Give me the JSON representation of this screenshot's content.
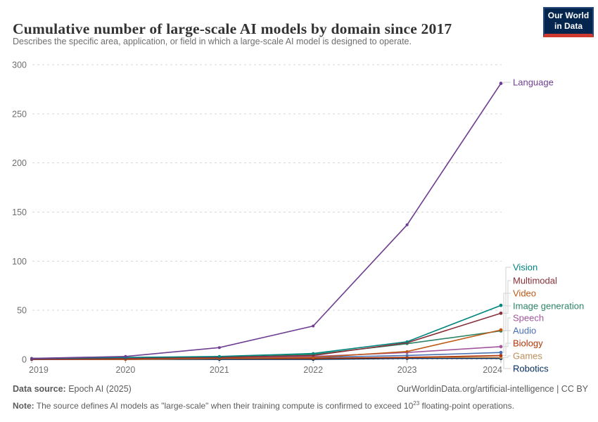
{
  "header": {
    "title": "Cumulative number of large-scale AI models by domain since 2017",
    "subtitle": "Describes the specific area, application, or field in which a large-scale AI model is designed to operate.",
    "logo": {
      "line1": "Our World",
      "line2": "in Data",
      "bg_color": "#04254E",
      "accent_color": "#CE3A2E"
    }
  },
  "chart_data": {
    "type": "line",
    "title": "Cumulative number of large-scale AI models by domain since 2017",
    "x": [
      2019,
      2020,
      2021,
      2022,
      2023,
      2024
    ],
    "series": [
      {
        "name": "Language",
        "color": "#6D3E91",
        "values": [
          1,
          3,
          12,
          34,
          137,
          281
        ]
      },
      {
        "name": "Vision",
        "color": "#00847E",
        "values": [
          1,
          2,
          3,
          6,
          18,
          55
        ]
      },
      {
        "name": "Multimodal",
        "color": "#883039",
        "values": [
          0,
          1,
          2,
          4,
          17,
          47
        ]
      },
      {
        "name": "Video",
        "color": "#BE5915",
        "values": [
          0,
          0,
          1,
          2,
          8,
          30
        ]
      },
      {
        "name": "Image generation",
        "color": "#2C8465",
        "values": [
          0,
          1,
          2,
          5,
          16,
          29
        ]
      },
      {
        "name": "Speech",
        "color": "#A2559C",
        "values": [
          0,
          1,
          2,
          3,
          7,
          13
        ]
      },
      {
        "name": "Audio",
        "color": "#4970B3",
        "values": [
          0,
          0,
          1,
          2,
          4,
          7
        ]
      },
      {
        "name": "Biology",
        "color": "#B13507",
        "values": [
          0,
          0,
          1,
          1,
          2,
          4
        ]
      },
      {
        "name": "Games",
        "color": "#BC8E5A",
        "values": [
          1,
          1,
          1,
          1,
          2,
          2
        ]
      },
      {
        "name": "Robotics",
        "color": "#00295B",
        "values": [
          0,
          0,
          0,
          0,
          1,
          1
        ]
      }
    ],
    "ylim": [
      0,
      300
    ],
    "yticks": [
      0,
      50,
      100,
      150,
      200,
      250,
      300
    ],
    "xlabel": "",
    "ylabel": "",
    "grid": "horizontal-dashed",
    "legend_position": "right-direct-labels"
  },
  "footer": {
    "source_label": "Data source:",
    "source_value": " Epoch AI (2025)",
    "attribution": "OurWorldinData.org/artificial-intelligence | CC BY",
    "note_label": "Note:",
    "note_before_sup": " The source defines AI models as \"large-scale\" when their training compute is confirmed to exceed 10",
    "note_sup": "23",
    "note_after_sup": " floating-point operations."
  }
}
